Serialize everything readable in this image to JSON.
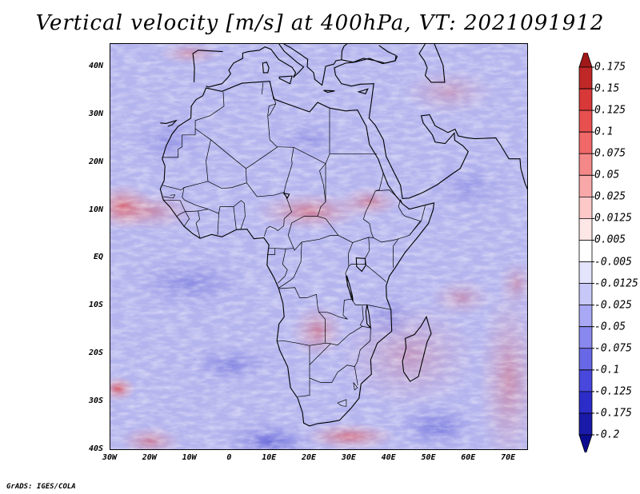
{
  "title": "Vertical velocity [m/s] at 400hPa, VT: 2021091912",
  "footer": "GrADS: IGES/COLA",
  "map": {
    "lon_range": [
      -30,
      75
    ],
    "lat_range": [
      -40,
      45
    ],
    "lat_labels": [
      "40N",
      "30N",
      "20N",
      "10N",
      "EQ",
      "10S",
      "20S",
      "30S",
      "40S"
    ],
    "lon_labels": [
      "30W",
      "20W",
      "10W",
      "0",
      "10E",
      "20E",
      "30E",
      "40E",
      "50E",
      "60E",
      "70E"
    ],
    "lat_values": [
      40,
      30,
      20,
      10,
      0,
      -10,
      -20,
      -30,
      -40
    ],
    "lon_values": [
      -30,
      -20,
      -10,
      0,
      10,
      20,
      30,
      40,
      50,
      60,
      70
    ]
  },
  "colorbar": {
    "labels": [
      "0.175",
      "0.15",
      "0.125",
      "0.1",
      "0.075",
      "0.05",
      "0.025",
      "0.0125",
      "0.005",
      "-0.005",
      "-0.0125",
      "-0.025",
      "-0.05",
      "-0.075",
      "-0.1",
      "-0.125",
      "-0.175",
      "-0.2"
    ],
    "colors": [
      "#a01818",
      "#c02828",
      "#d83838",
      "#e85050",
      "#f06868",
      "#f48888",
      "#f8a8a8",
      "#fcc8c8",
      "#fde6e6",
      "#ffffff",
      "#e4e4fc",
      "#c8c8f8",
      "#a8a8f4",
      "#8888ee",
      "#6868e6",
      "#4848dc",
      "#2c2cc8",
      "#1a1aa8",
      "#0c0c90"
    ]
  }
}
